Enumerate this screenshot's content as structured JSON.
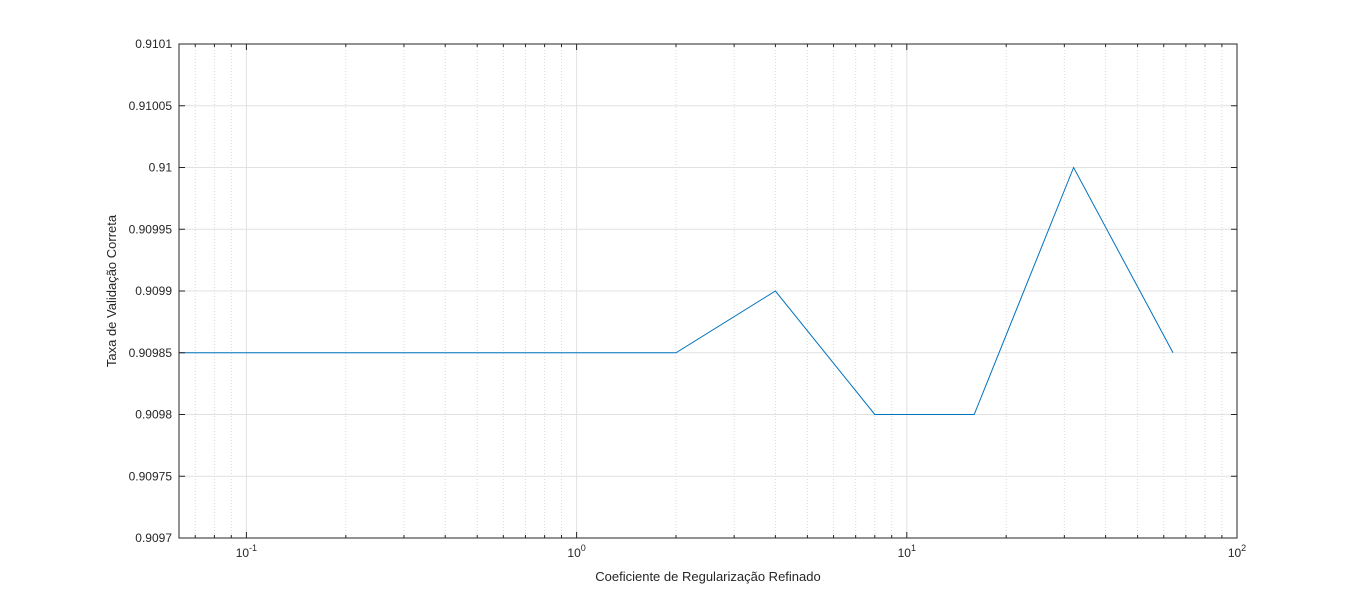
{
  "chart_data": {
    "type": "line",
    "title": "",
    "xlabel": "Coeficiente de Regularização Refinado",
    "ylabel": "Taxa de Validação Correta",
    "xscale": "log",
    "xlim": [
      0.0625,
      100
    ],
    "ylim": [
      0.9097,
      0.9101
    ],
    "grid": true,
    "minor_grid": true,
    "series": [
      {
        "color": "#0072BD",
        "x": [
          0.0625,
          0.125,
          0.25,
          0.5,
          1,
          2,
          4,
          8,
          16,
          32,
          64
        ],
        "y": [
          0.90985,
          0.90985,
          0.90985,
          0.90985,
          0.90985,
          0.90985,
          0.9099,
          0.9098,
          0.9098,
          0.91,
          0.90985
        ]
      }
    ],
    "yticks": [
      0.9097,
      0.90975,
      0.9098,
      0.90985,
      0.9099,
      0.90995,
      0.91,
      0.91005,
      0.9101
    ],
    "ytick_labels": [
      "0.9097",
      "0.90975",
      "0.9098",
      "0.90985",
      "0.9099",
      "0.90995",
      "0.91",
      "0.91005",
      "0.9101"
    ],
    "xticks": [
      0.1,
      1,
      10,
      100
    ],
    "xtick_labels": [
      {
        "base": "10",
        "exp": "-1"
      },
      {
        "base": "10",
        "exp": "0"
      },
      {
        "base": "10",
        "exp": "1"
      },
      {
        "base": "10",
        "exp": "2"
      }
    ]
  }
}
